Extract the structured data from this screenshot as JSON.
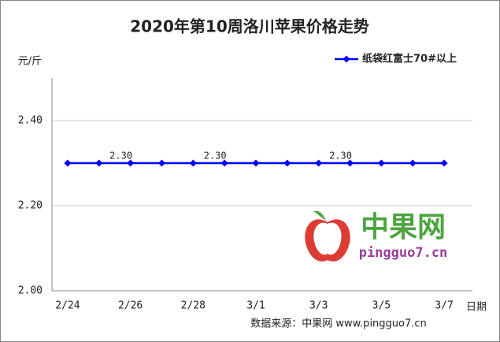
{
  "chart_data": {
    "type": "line",
    "title": "2020年第10周洛川苹果价格走势",
    "y_label": "元/斤",
    "x_label": "日期",
    "source": "数据来源：中果网 www.pingguo7.cn",
    "watermark": {
      "brand": "中果网",
      "site": "pingguo7.cn"
    },
    "categories": [
      "2/24",
      null,
      "2/26",
      null,
      "2/28",
      null,
      "3/1",
      null,
      "3/3",
      null,
      "3/5",
      null,
      "3/7"
    ],
    "series": [
      {
        "name": "纸袋红富士70#以上",
        "color": "#0000ff",
        "values": [
          2.3,
          2.3,
          2.3,
          2.3,
          2.3,
          2.3,
          2.3,
          2.3,
          2.3,
          2.3,
          2.3,
          2.3,
          2.3
        ],
        "value_labels": [
          null,
          null,
          "2.30",
          null,
          null,
          "2.30",
          null,
          null,
          null,
          "2.30",
          null,
          null,
          null
        ]
      }
    ],
    "ylim": [
      2,
      2.5
    ],
    "yticks": [
      {
        "value": 2,
        "label": "2.00"
      },
      {
        "value": 2.2,
        "label": "2.20"
      },
      {
        "value": 2.4,
        "label": "2.40"
      }
    ],
    "grid": true,
    "legend": "top-right"
  }
}
